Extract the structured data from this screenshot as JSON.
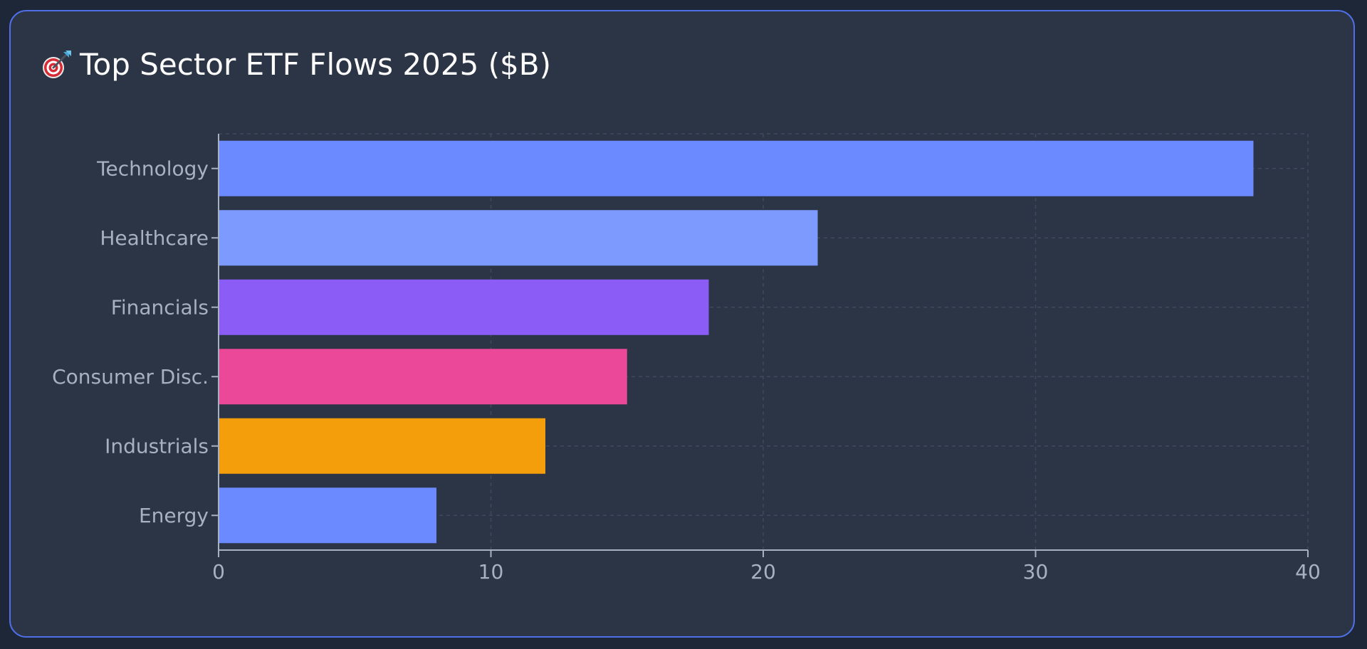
{
  "chart_data": {
    "type": "bar",
    "orientation": "horizontal",
    "title": "Top Sector ETF Flows 2025 ($B)",
    "title_icon": "target-dart-icon",
    "categories": [
      "Technology",
      "Healthcare",
      "Financials",
      "Consumer Disc.",
      "Industrials",
      "Energy"
    ],
    "values": [
      38,
      22,
      18,
      15,
      12,
      8
    ],
    "colors": [
      "#6c8aff",
      "#7d9bff",
      "#8b5cf6",
      "#ec4899",
      "#f59e0b",
      "#6c8aff"
    ],
    "xlim": [
      0,
      40
    ],
    "xticks": [
      0,
      10,
      20,
      30,
      40
    ],
    "xlabel": "",
    "ylabel": "",
    "grid": true,
    "legend": "none"
  }
}
